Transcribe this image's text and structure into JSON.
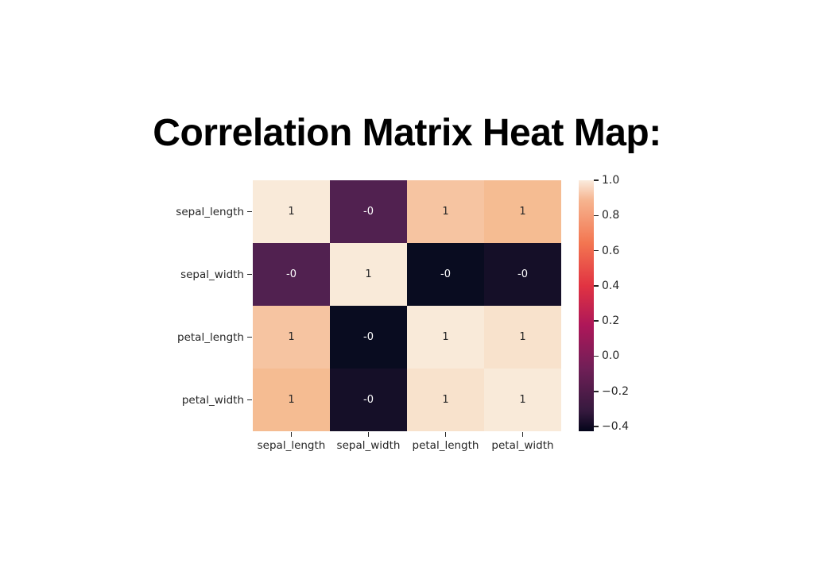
{
  "title": "Correlation Matrix Heat Map:",
  "colors": {
    "background": "#ffffff",
    "title_text": "#000000",
    "tick_text": "#262626",
    "annot_dark": "#262626",
    "annot_light": "#ffffff",
    "tick_mark": "#262626"
  },
  "chart_data": {
    "type": "heatmap",
    "title": "Correlation Matrix Heat Map:",
    "x_categories": [
      "sepal_length",
      "sepal_width",
      "petal_length",
      "petal_width"
    ],
    "y_categories": [
      "sepal_length",
      "sepal_width",
      "petal_length",
      "petal_width"
    ],
    "matrix_estimated_values": [
      [
        1.0,
        -0.12,
        0.87,
        0.82
      ],
      [
        -0.12,
        1.0,
        -0.43,
        -0.37
      ],
      [
        0.87,
        -0.43,
        1.0,
        0.96
      ],
      [
        0.82,
        -0.37,
        0.96,
        1.0
      ]
    ],
    "cells": [
      [
        {
          "label": "1",
          "color": "#f9ead9",
          "text": "dark"
        },
        {
          "label": "-0",
          "color": "#512150",
          "text": "light"
        },
        {
          "label": "1",
          "color": "#f6c4a1",
          "text": "dark"
        },
        {
          "label": "1",
          "color": "#f5bc92",
          "text": "dark"
        }
      ],
      [
        {
          "label": "-0",
          "color": "#512150",
          "text": "light"
        },
        {
          "label": "1",
          "color": "#f9ead9",
          "text": "dark"
        },
        {
          "label": "-0",
          "color": "#090c20",
          "text": "light"
        },
        {
          "label": "-0",
          "color": "#150f28",
          "text": "light"
        }
      ],
      [
        {
          "label": "1",
          "color": "#f6c4a1",
          "text": "dark"
        },
        {
          "label": "-0",
          "color": "#090c20",
          "text": "light"
        },
        {
          "label": "1",
          "color": "#f9ead9",
          "text": "dark"
        },
        {
          "label": "1",
          "color": "#f8e2cc",
          "text": "dark"
        }
      ],
      [
        {
          "label": "1",
          "color": "#f5bc92",
          "text": "dark"
        },
        {
          "label": "-0",
          "color": "#150f28",
          "text": "light"
        },
        {
          "label": "1",
          "color": "#f8e2cc",
          "text": "dark"
        },
        {
          "label": "1",
          "color": "#f9ead9",
          "text": "dark"
        }
      ]
    ],
    "colorbar": {
      "vmax": 1.0,
      "vmin_estimated": -0.43,
      "ticks": [
        {
          "label": "1.0",
          "pos": 0.0
        },
        {
          "label": "0.8",
          "pos": 0.1402
        },
        {
          "label": "0.6",
          "pos": 0.2804
        },
        {
          "label": "0.4",
          "pos": 0.4205
        },
        {
          "label": "0.2",
          "pos": 0.5607
        },
        {
          "label": "0.0",
          "pos": 0.7008
        },
        {
          "label": "−0.2",
          "pos": 0.841
        },
        {
          "label": "−0.4",
          "pos": 0.9812
        }
      ],
      "gradient": [
        {
          "pos": 0.0,
          "color": "#faebdd"
        },
        {
          "pos": 0.08,
          "color": "#f6b48f"
        },
        {
          "pos": 0.25,
          "color": "#f37651"
        },
        {
          "pos": 0.42,
          "color": "#e13342"
        },
        {
          "pos": 0.58,
          "color": "#ad1759"
        },
        {
          "pos": 0.75,
          "color": "#701f57"
        },
        {
          "pos": 0.92,
          "color": "#35193e"
        },
        {
          "pos": 1.0,
          "color": "#03051a"
        }
      ],
      "legend_position": "right"
    }
  }
}
